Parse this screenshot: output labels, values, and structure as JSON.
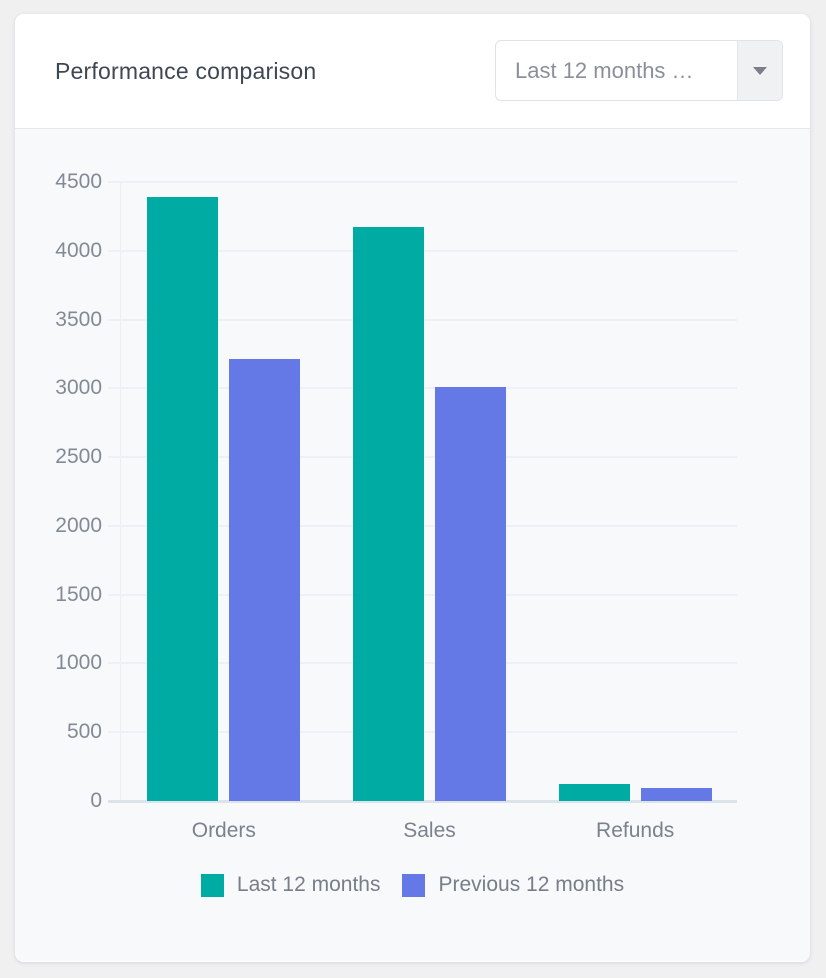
{
  "page": {
    "background": "#f0f0f1"
  },
  "card": {
    "title": "Performance comparison",
    "dropdown": {
      "value": "Last 12 months …"
    }
  },
  "chart_data": {
    "type": "bar",
    "title": "Performance comparison",
    "categories": [
      "Orders",
      "Sales",
      "Refunds"
    ],
    "series": [
      {
        "name": "Last 12 months",
        "color": "#00ABA4",
        "values": [
          4390,
          4170,
          125
        ]
      },
      {
        "name": "Previous 12 months",
        "color": "#6478E6",
        "values": [
          3210,
          3010,
          95
        ]
      }
    ],
    "xlabel": "",
    "ylabel": "",
    "ylim": [
      0,
      4500
    ],
    "ytick_step": 500,
    "grid": true,
    "legend_position": "bottom"
  },
  "colors": {
    "grid": "#eef0f3",
    "axis_baseline": "#dde3ea",
    "tick_text": "#828a96",
    "title_text": "#3d4753",
    "legend_text": "#767e8a",
    "card_body": "#f8f9fb",
    "divider": "#e7e8ea"
  }
}
